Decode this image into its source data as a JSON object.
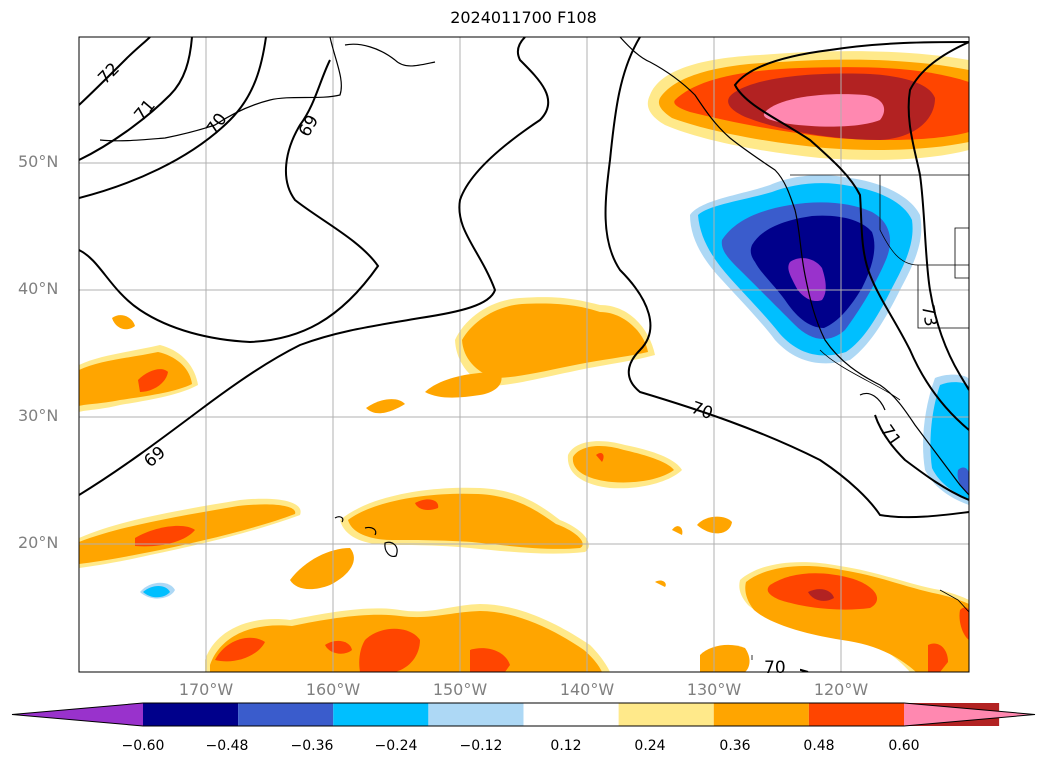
{
  "title": "2024011700 F108",
  "map": {
    "extent": {
      "lon_min": -180,
      "lon_max": -110,
      "lat_min": 10,
      "lat_max": 60
    },
    "latitude_labels": [
      {
        "lat": 50,
        "text": "50°N"
      },
      {
        "lat": 40,
        "text": "40°N"
      },
      {
        "lat": 30,
        "text": "30°N"
      },
      {
        "lat": 20,
        "text": "20°N"
      }
    ],
    "longitude_labels": [
      {
        "lon": -170,
        "text": "170°W"
      },
      {
        "lon": -160,
        "text": "160°W"
      },
      {
        "lon": -150,
        "text": "150°W"
      },
      {
        "lon": -140,
        "text": "140°W"
      },
      {
        "lon": -130,
        "text": "130°W"
      },
      {
        "lon": -120,
        "text": "120°W"
      }
    ],
    "contour_labels": [
      "72",
      "71",
      "70",
      "69",
      "69",
      "70",
      "71",
      "73",
      "70"
    ],
    "gridlines": true
  },
  "colorbar": {
    "ticks": [
      "−0.60",
      "−0.48",
      "−0.36",
      "−0.24",
      "−0.12",
      "0.12",
      "0.24",
      "0.36",
      "0.48",
      "0.60"
    ],
    "colors": [
      "#9932cc",
      "#00008b",
      "#3a5ccc",
      "#00bfff",
      "#add8f5",
      "#ffffff",
      "#ffe98a",
      "#ffa500",
      "#ff4500",
      "#b22222",
      "#ff88b0"
    ],
    "extend": "both"
  }
}
